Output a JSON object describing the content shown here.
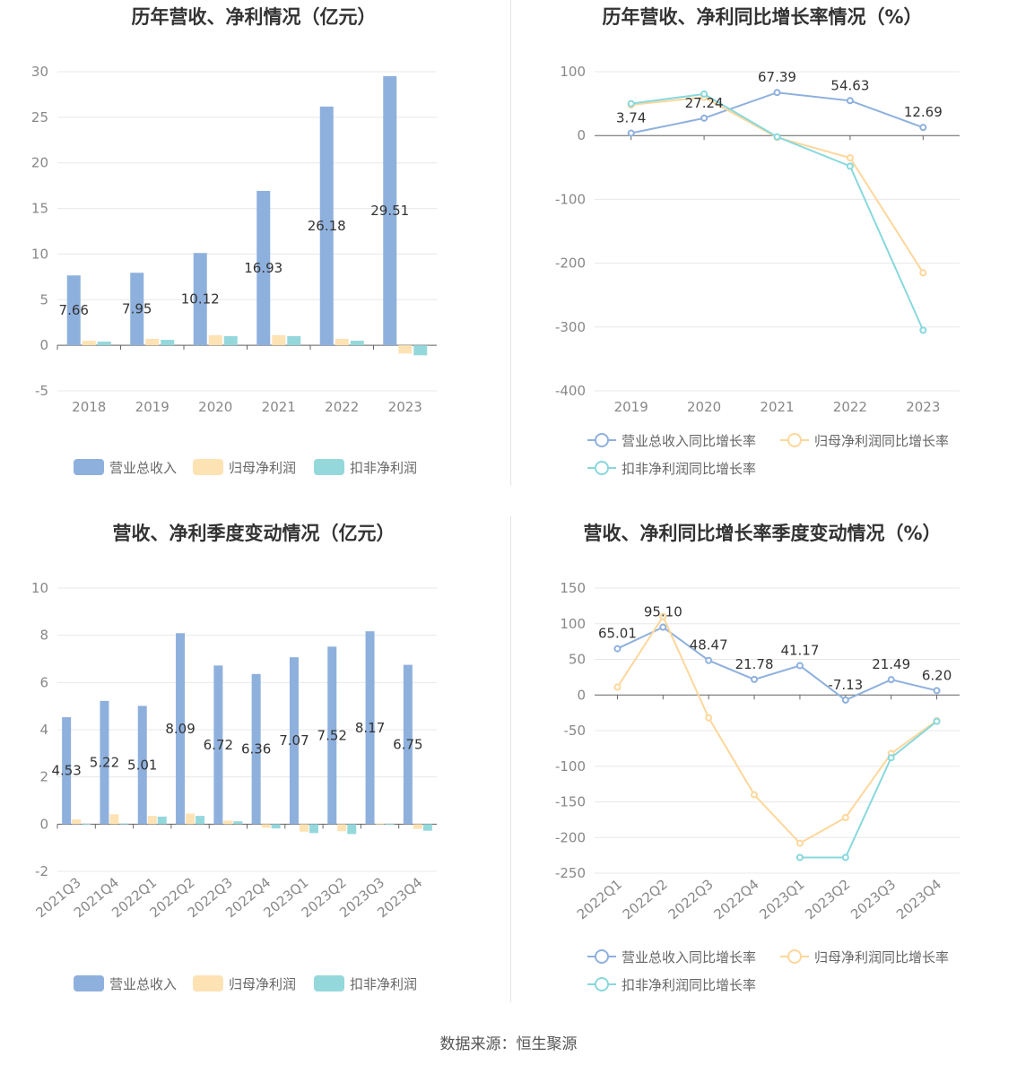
{
  "colors": {
    "revenue": "#8eb0dd",
    "netprofit": "#fde2b4",
    "deducted": "#95d8dc",
    "rev_line": "#8eb0dd",
    "np_line": "#fdd79b",
    "ded_line": "#88d8dc",
    "grid": "#e8e8e8",
    "axis": "#666666"
  },
  "source": "数据来源：恒生聚源",
  "chart_data": [
    {
      "type": "bar",
      "title": "历年营收、净利情况（亿元）",
      "categories": [
        "2018",
        "2019",
        "2020",
        "2021",
        "2022",
        "2023"
      ],
      "series": [
        {
          "name": "营业总收入",
          "values": [
            7.66,
            7.95,
            10.12,
            16.93,
            26.18,
            29.51
          ],
          "labels": [
            "7.66",
            "7.95",
            "10.12",
            "16.93",
            "26.18",
            "29.51"
          ]
        },
        {
          "name": "归母净利润",
          "values": [
            0.5,
            0.7,
            1.1,
            1.1,
            0.7,
            -0.9
          ]
        },
        {
          "name": "扣非净利润",
          "values": [
            0.4,
            0.6,
            1.0,
            1.0,
            0.5,
            -1.1
          ]
        }
      ],
      "ylim": [
        -5,
        30
      ],
      "yticks": [
        -5,
        0,
        5,
        10,
        15,
        20,
        25,
        30
      ],
      "legend": "bottom"
    },
    {
      "type": "line",
      "title": "历年营收、净利同比增长率情况（%）",
      "categories": [
        "2019",
        "2020",
        "2021",
        "2022",
        "2023"
      ],
      "series": [
        {
          "name": "营业总收入同比增长率",
          "values": [
            3.74,
            27.24,
            67.39,
            54.63,
            12.69
          ],
          "labels": [
            "3.74",
            "27.24",
            "67.39",
            "54.63",
            "12.69"
          ]
        },
        {
          "name": "归母净利润同比增长率",
          "values": [
            48,
            60,
            -3,
            -35,
            -215
          ]
        },
        {
          "name": "扣非净利润同比增长率",
          "values": [
            50,
            65,
            -2,
            -48,
            -305
          ]
        }
      ],
      "ylim": [
        -400,
        100
      ],
      "yticks": [
        -400,
        -300,
        -200,
        -100,
        0,
        100
      ],
      "legend": "bottom"
    },
    {
      "type": "bar",
      "title": "营收、净利季度变动情况（亿元）",
      "categories": [
        "2021Q3",
        "2021Q4",
        "2022Q1",
        "2022Q2",
        "2022Q3",
        "2022Q4",
        "2023Q1",
        "2023Q2",
        "2023Q3",
        "2023Q4"
      ],
      "series": [
        {
          "name": "营业总收入",
          "values": [
            4.53,
            5.22,
            5.01,
            8.09,
            6.72,
            6.36,
            7.07,
            7.52,
            8.17,
            6.75
          ],
          "labels": [
            "4.53",
            "5.22",
            "5.01",
            "8.09",
            "6.72",
            "6.36",
            "7.07",
            "7.52",
            "8.17",
            "6.75"
          ]
        },
        {
          "name": "归母净利润",
          "values": [
            0.2,
            0.42,
            0.35,
            0.45,
            0.15,
            -0.15,
            -0.32,
            -0.3,
            0.03,
            -0.2
          ]
        },
        {
          "name": "扣非净利润",
          "values": [
            0.02,
            0.03,
            0.32,
            0.35,
            0.12,
            -0.18,
            -0.38,
            -0.42,
            0.02,
            -0.28
          ]
        }
      ],
      "ylim": [
        -2,
        10
      ],
      "yticks": [
        -2,
        0,
        2,
        4,
        6,
        8,
        10
      ],
      "legend": "bottom"
    },
    {
      "type": "line",
      "title": "营收、净利同比增长率季度变动情况（%）",
      "categories": [
        "2022Q1",
        "2022Q2",
        "2022Q3",
        "2022Q4",
        "2023Q1",
        "2023Q2",
        "2023Q3",
        "2023Q4"
      ],
      "series": [
        {
          "name": "营业总收入同比增长率",
          "values": [
            65.01,
            95.1,
            48.47,
            21.78,
            41.17,
            -7.13,
            21.49,
            6.2
          ],
          "labels": [
            "65.01",
            "95.10",
            "48.47",
            "21.78",
            "41.17",
            "-7.13",
            "21.49",
            "6.20"
          ]
        },
        {
          "name": "归母净利润同比增长率",
          "values": [
            11,
            110,
            -32,
            -140,
            -208,
            -172,
            -82,
            -36
          ]
        },
        {
          "name": "扣非净利润同比增长率",
          "values": [
            null,
            null,
            null,
            null,
            -228,
            -228,
            -88,
            -37
          ]
        }
      ],
      "ylim": [
        -250,
        150
      ],
      "yticks": [
        -250,
        -200,
        -150,
        -100,
        -50,
        0,
        50,
        100,
        150
      ],
      "legend": "bottom"
    }
  ]
}
